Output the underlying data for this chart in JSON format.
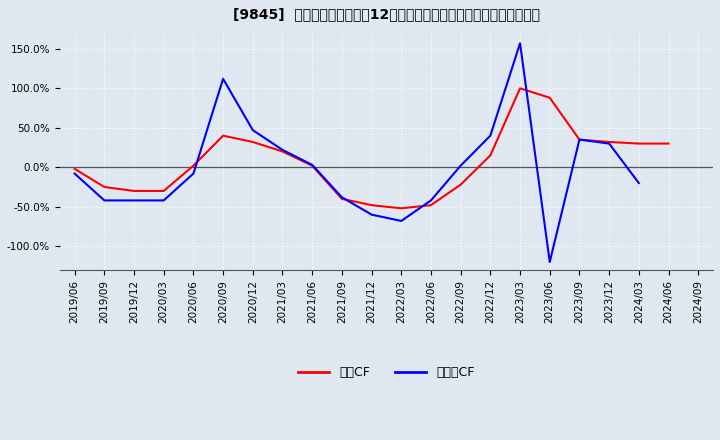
{
  "title": "[9845]  キャッシュフローの12か月移動合計の対前年同期増減率の推移",
  "ylim": [
    -1.3,
    1.75
  ],
  "yticks": [
    -1.0,
    -0.5,
    0.0,
    0.5,
    1.0,
    1.5
  ],
  "ytick_labels": [
    "-100.0%",
    "-50.0%",
    "0.0%",
    "50.0%",
    "100.0%",
    "150.0%"
  ],
  "legend_labels": [
    "営業CF",
    "フリーCF"
  ],
  "line_colors": [
    "#ff0000",
    "#0000ff"
  ],
  "x_labels": [
    "2019/06",
    "2019/09",
    "2019/12",
    "2020/03",
    "2020/06",
    "2020/09",
    "2020/12",
    "2021/03",
    "2021/06",
    "2021/09",
    "2021/12",
    "2022/03",
    "2022/06",
    "2022/09",
    "2022/12",
    "2023/03",
    "2023/06",
    "2023/09",
    "2023/12",
    "2024/03",
    "2024/06",
    "2024/09"
  ],
  "operating_cf": [
    -0.02,
    -0.25,
    -0.3,
    -0.3,
    0.02,
    0.4,
    0.32,
    0.2,
    0.02,
    -0.4,
    -0.48,
    -0.52,
    -0.48,
    -0.22,
    0.15,
    1.0,
    0.88,
    0.35,
    0.32,
    0.3,
    0.3,
    null
  ],
  "free_cf": [
    -0.08,
    -0.42,
    -0.42,
    -0.42,
    -0.08,
    1.12,
    0.47,
    0.22,
    0.03,
    -0.38,
    -0.6,
    -0.68,
    -0.42,
    0.02,
    0.4,
    1.57,
    -1.2,
    0.35,
    0.3,
    -0.2,
    null,
    null
  ],
  "background_color": "#dfe8f0",
  "plot_bg_color": "#dfe8f0",
  "grid_color": "#ffffff",
  "title_fontsize": 10,
  "tick_fontsize": 7.5,
  "legend_fontsize": 9
}
